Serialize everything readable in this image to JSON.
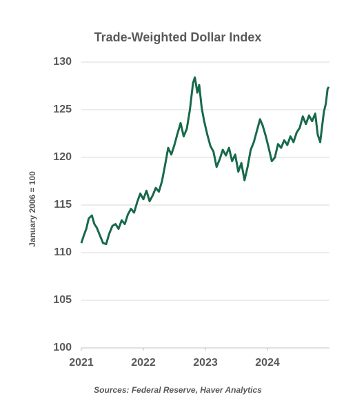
{
  "chart_data": {
    "type": "line",
    "title": "Trade-Weighted Dollar Index",
    "y_label": "January 2006 = 100",
    "source": "Sources: Federal Reserve, Haver Analytics",
    "x": [
      2021.0,
      2021.04,
      2021.08,
      2021.12,
      2021.17,
      2021.21,
      2021.25,
      2021.3,
      2021.35,
      2021.4,
      2021.45,
      2021.5,
      2021.55,
      2021.6,
      2021.65,
      2021.7,
      2021.75,
      2021.8,
      2021.85,
      2021.9,
      2021.95,
      2022.0,
      2022.05,
      2022.1,
      2022.15,
      2022.2,
      2022.25,
      2022.3,
      2022.35,
      2022.4,
      2022.45,
      2022.5,
      2022.55,
      2022.6,
      2022.65,
      2022.7,
      2022.75,
      2022.8,
      2022.83,
      2022.87,
      2022.9,
      2022.94,
      2022.98,
      2023.03,
      2023.08,
      2023.13,
      2023.18,
      2023.23,
      2023.28,
      2023.33,
      2023.38,
      2023.43,
      2023.48,
      2023.53,
      2023.58,
      2023.63,
      2023.68,
      2023.73,
      2023.78,
      2023.83,
      2023.88,
      2023.92,
      2023.97,
      2024.02,
      2024.07,
      2024.12,
      2024.17,
      2024.22,
      2024.27,
      2024.32,
      2024.37,
      2024.42,
      2024.47,
      2024.52,
      2024.57,
      2024.62,
      2024.67,
      2024.72,
      2024.77,
      2024.81,
      2024.85,
      2024.88,
      2024.91,
      2024.94,
      2024.97,
      2024.99
    ],
    "series": [
      {
        "name": "Trade-Weighted Dollar Index",
        "color": "#17694a",
        "values": [
          111.0,
          111.8,
          112.5,
          113.6,
          113.9,
          113.0,
          112.6,
          111.8,
          111.0,
          110.9,
          112.0,
          112.8,
          113.0,
          112.5,
          113.4,
          113.0,
          114.0,
          114.6,
          114.2,
          115.3,
          116.2,
          115.6,
          116.5,
          115.4,
          116.0,
          116.8,
          116.4,
          117.5,
          119.2,
          121.0,
          120.3,
          121.3,
          122.5,
          123.6,
          122.2,
          123.0,
          125.0,
          127.8,
          128.4,
          126.8,
          127.6,
          125.2,
          123.8,
          122.4,
          121.2,
          120.6,
          119.0,
          119.8,
          120.8,
          120.2,
          121.0,
          119.6,
          120.3,
          118.5,
          119.4,
          117.6,
          119.0,
          120.8,
          121.6,
          122.8,
          124.0,
          123.4,
          122.3,
          121.0,
          119.6,
          120.0,
          121.4,
          121.0,
          121.8,
          121.3,
          122.2,
          121.6,
          122.6,
          123.1,
          124.3,
          123.5,
          124.4,
          123.8,
          124.6,
          122.4,
          121.6,
          123.2,
          124.8,
          125.6,
          127.2,
          127.4
        ]
      }
    ],
    "xlim": [
      2021,
      2025
    ],
    "xticks": [
      2021,
      2022,
      2023,
      2024
    ],
    "ylim": [
      100,
      130
    ],
    "yticks": [
      100,
      105,
      110,
      115,
      120,
      125,
      130
    ],
    "grid": true
  }
}
